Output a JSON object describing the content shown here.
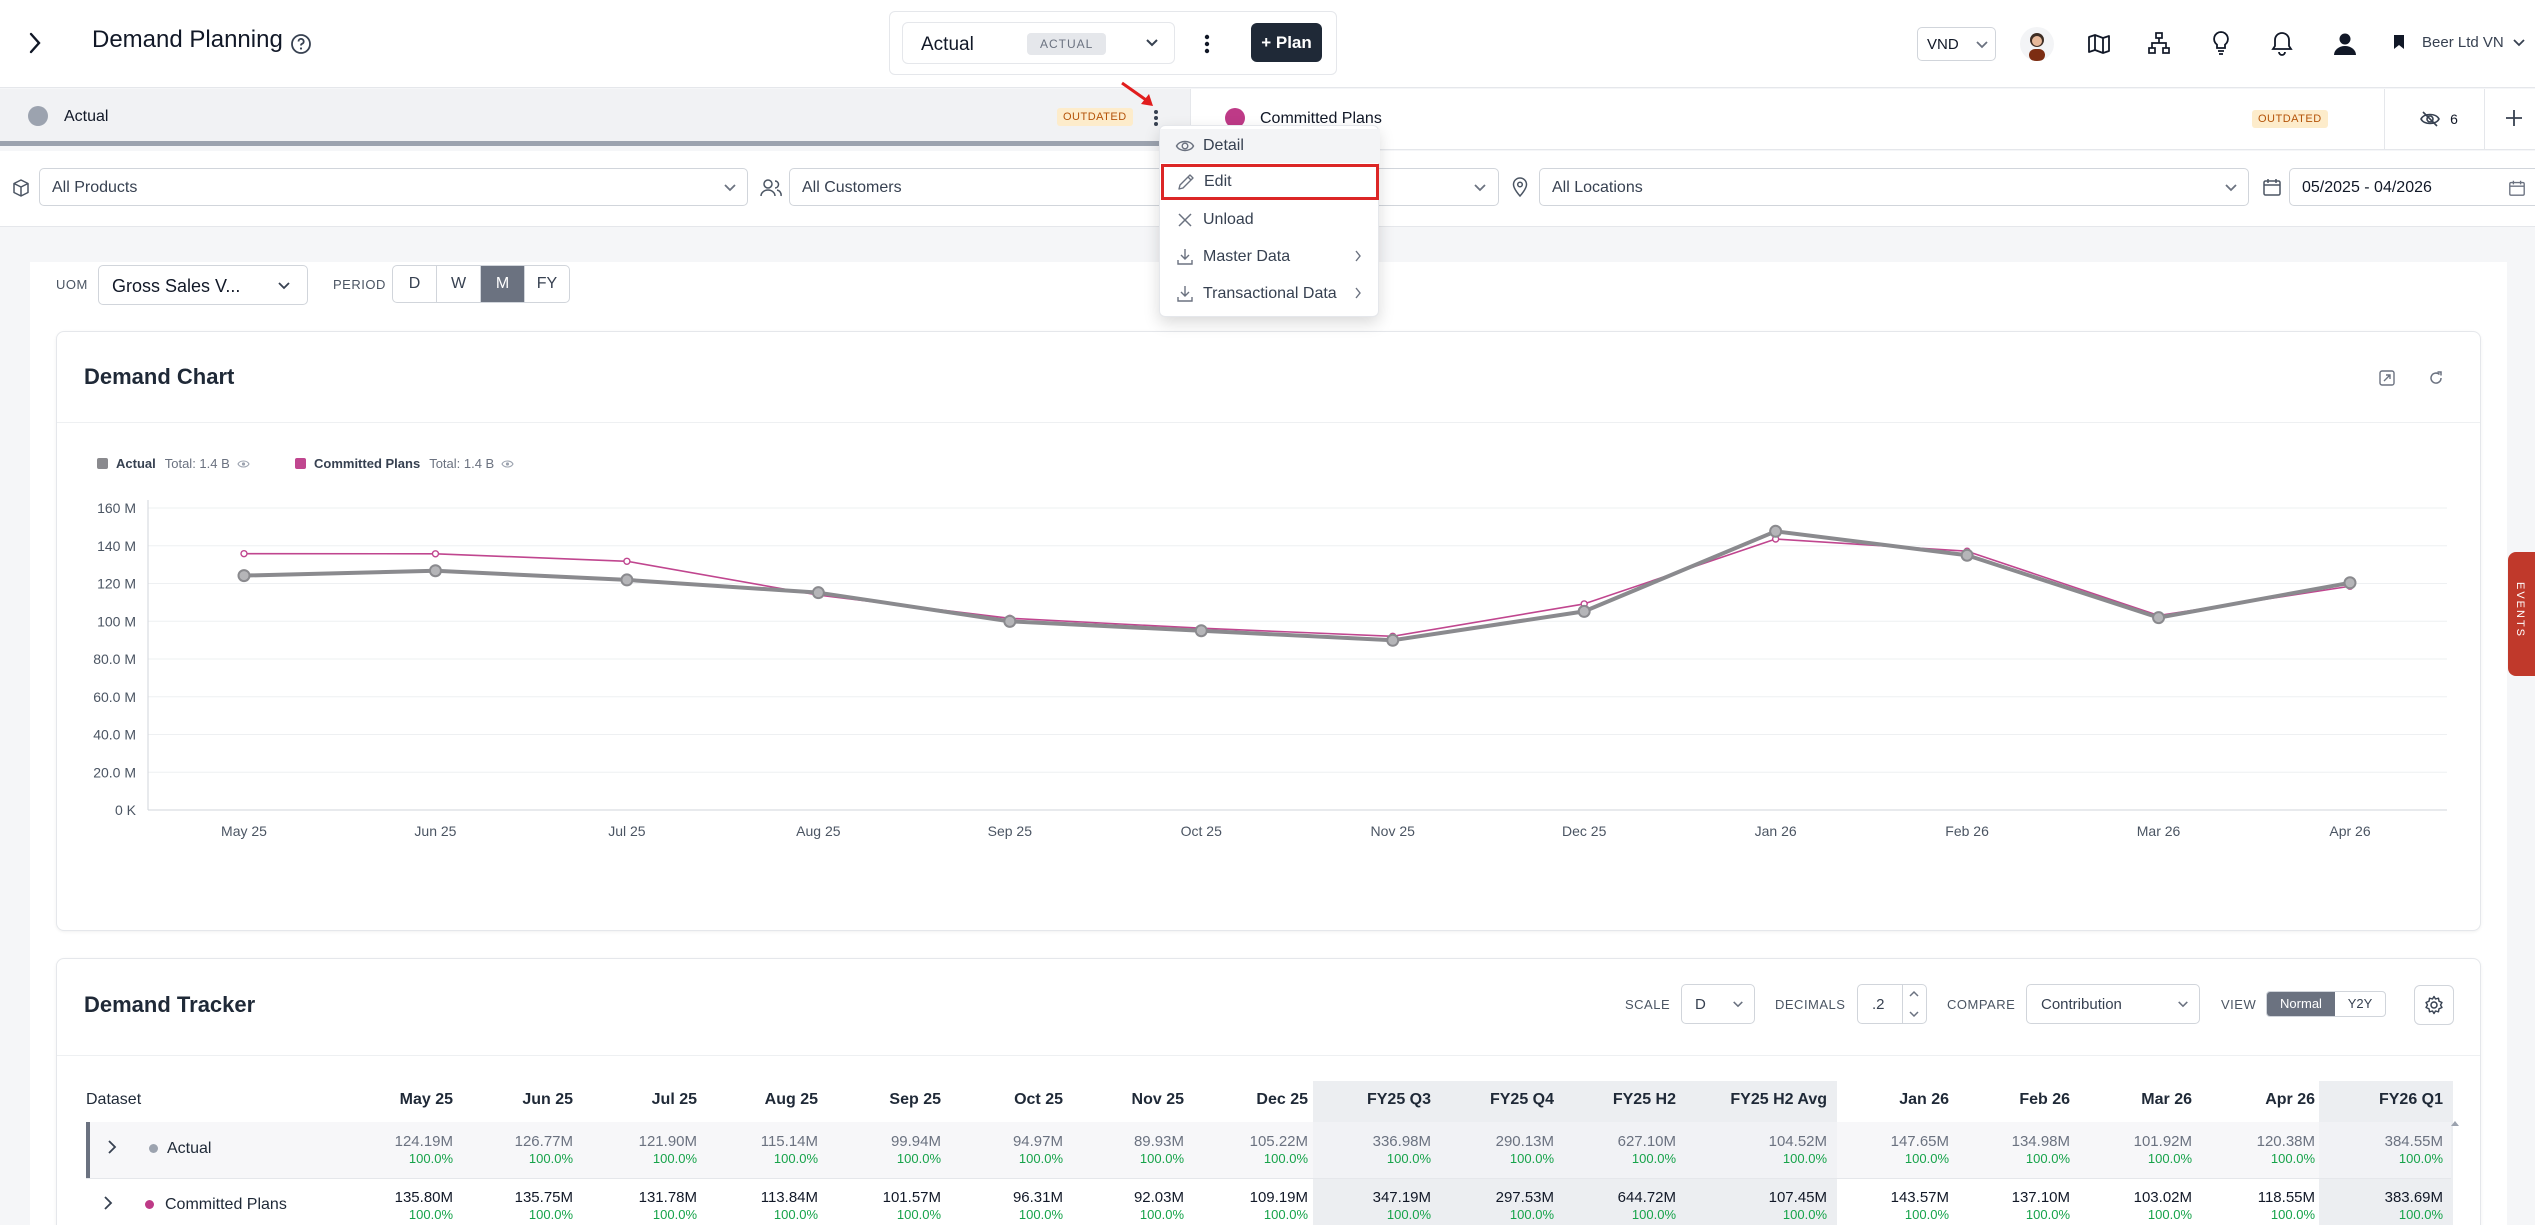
{
  "header": {
    "title": "Demand Planning",
    "plan_select": {
      "value": "Actual",
      "tag": "ACTUAL"
    },
    "new_plan_label": "+ Plan",
    "currency": "VND",
    "company": "Beer Ltd VN"
  },
  "tabs": [
    {
      "label": "Actual",
      "status": "OUTDATED",
      "color": "#9ca3af"
    },
    {
      "label": "Committed Plans",
      "status": "OUTDATED",
      "color": "#be3a87"
    }
  ],
  "hidden_count": "6",
  "context_menu": {
    "items": [
      {
        "label": "Detail",
        "icon": "eye-icon"
      },
      {
        "label": "Edit",
        "icon": "pencil-icon",
        "highlighted": true
      },
      {
        "label": "Unload",
        "icon": "x-icon"
      },
      {
        "label": "Master Data",
        "icon": "download-icon",
        "submenu": true
      },
      {
        "label": "Transactional Data",
        "icon": "download-icon",
        "submenu": true
      }
    ]
  },
  "filters": {
    "products": "All Products",
    "customers": "All Customers",
    "locations": "All Locations",
    "date_range": "05/2025 - 04/2026"
  },
  "controls": {
    "uom_label": "UOM",
    "uom_value": "Gross Sales V...",
    "period_label": "PERIOD",
    "period_options": [
      "D",
      "W",
      "M",
      "FY"
    ],
    "period_selected": "M"
  },
  "chart_card": {
    "title": "Demand Chart"
  },
  "chart_data": {
    "type": "line",
    "categories": [
      "May 25",
      "Jun 25",
      "Jul 25",
      "Aug 25",
      "Sep 25",
      "Oct 25",
      "Nov 25",
      "Dec 25",
      "Jan 26",
      "Feb 26",
      "Mar 26",
      "Apr 26"
    ],
    "series": [
      {
        "name": "Actual",
        "total": "Total: 1.4 B",
        "color": "#8a8a8e",
        "values": [
          124.19,
          126.77,
          121.9,
          115.14,
          99.94,
          94.97,
          89.93,
          105.22,
          147.65,
          134.98,
          101.92,
          120.38
        ]
      },
      {
        "name": "Committed Plans",
        "total": "Total: 1.4 B",
        "color": "#c0468f",
        "values": [
          135.8,
          135.75,
          131.78,
          113.84,
          101.57,
          96.31,
          92.03,
          109.19,
          143.57,
          137.1,
          103.02,
          118.55
        ]
      }
    ],
    "yticks": [
      "160 M",
      "140 M",
      "120 M",
      "100 M",
      "80.0 M",
      "60.0 M",
      "40.0 M",
      "20.0 M",
      "0 K"
    ],
    "ylim": [
      0,
      160
    ],
    "grid": true,
    "legend": "top-left"
  },
  "tracker": {
    "title": "Demand Tracker",
    "scale_label": "SCALE",
    "scale_value": "D",
    "decimals_label": "DECIMALS",
    "decimals_value": ".2",
    "compare_label": "COMPARE",
    "compare_value": "Contribution",
    "view_label": "VIEW",
    "view_options": [
      "Normal",
      "Y2Y"
    ],
    "view_selected": "Normal",
    "dataset_header": "Dataset",
    "columns": [
      "May 25",
      "Jun 25",
      "Jul 25",
      "Aug 25",
      "Sep 25",
      "Oct 25",
      "Nov 25",
      "Dec 25",
      "FY25 Q3",
      "FY25 Q4",
      "FY25 H2",
      "FY25 H2 Avg",
      "Jan 26",
      "Feb 26",
      "Mar 26",
      "Apr 26",
      "FY26 Q1"
    ],
    "rows": [
      {
        "name": "Actual",
        "values": [
          "124.19M",
          "126.77M",
          "121.90M",
          "115.14M",
          "99.94M",
          "94.97M",
          "89.93M",
          "105.22M",
          "336.98M",
          "290.13M",
          "627.10M",
          "104.52M",
          "147.65M",
          "134.98M",
          "101.92M",
          "120.38M",
          "384.55M"
        ],
        "pct": "100.0%"
      },
      {
        "name": "Committed Plans",
        "values": [
          "135.80M",
          "135.75M",
          "131.78M",
          "113.84M",
          "101.57M",
          "96.31M",
          "92.03M",
          "109.19M",
          "347.19M",
          "297.53M",
          "644.72M",
          "107.45M",
          "143.57M",
          "137.10M",
          "103.02M",
          "118.55M",
          "383.69M"
        ],
        "pct": "100.0%"
      }
    ]
  },
  "events_tab": "EVENTS"
}
